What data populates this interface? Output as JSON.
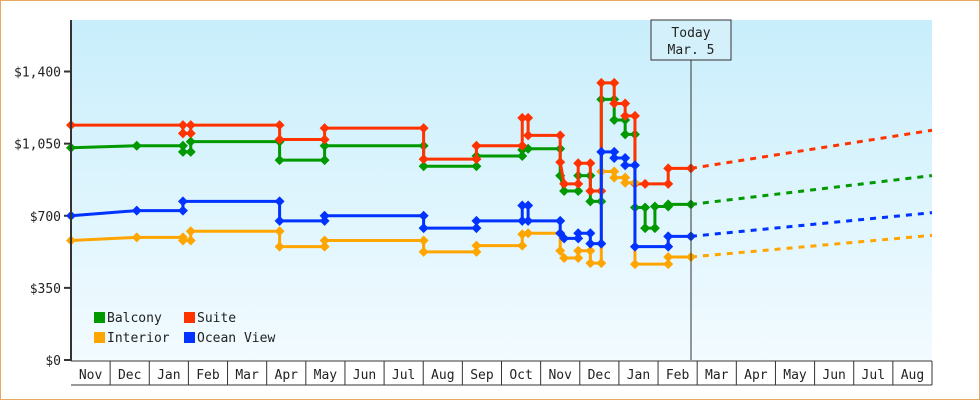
{
  "chart_data": {
    "type": "line",
    "title": "",
    "xlabel": "",
    "ylabel": "",
    "x_unit": "months since start of first Nov",
    "xlim": [
      0,
      22
    ],
    "ylim": [
      0,
      1650
    ],
    "yticks": [
      0,
      350,
      700,
      1050,
      1400
    ],
    "ytick_labels": [
      "$0",
      "$350",
      "$700",
      "$1,050",
      "$1,400"
    ],
    "month_labels": [
      "Nov",
      "Dec",
      "Jan",
      "Feb",
      "Mar",
      "Apr",
      "May",
      "Jun",
      "Jul",
      "Aug",
      "Sep",
      "Oct",
      "Nov",
      "Dec",
      "Jan",
      "Feb",
      "Mar",
      "Apr",
      "May",
      "Jun",
      "Jul",
      "Aug"
    ],
    "today": {
      "label": "Today",
      "date": "Mar. 5",
      "x": 15.84
    },
    "legend_position": "bottom-left",
    "series": [
      {
        "name": "Balcony",
        "color": "#009900",
        "points": [
          [
            0,
            1030
          ],
          [
            1.68,
            1040
          ],
          [
            2.86,
            1040
          ],
          [
            2.86,
            1010
          ],
          [
            3.06,
            1010
          ],
          [
            3.06,
            1060
          ],
          [
            5.33,
            1060
          ],
          [
            5.33,
            970
          ],
          [
            6.48,
            970
          ],
          [
            6.48,
            1040
          ],
          [
            9.01,
            1040
          ],
          [
            9.01,
            940
          ],
          [
            10.36,
            940
          ],
          [
            10.36,
            990
          ],
          [
            11.53,
            990
          ],
          [
            11.53,
            1020
          ],
          [
            11.68,
            1025
          ],
          [
            12.5,
            1025
          ],
          [
            12.5,
            895
          ],
          [
            12.6,
            820
          ],
          [
            12.96,
            820
          ],
          [
            12.96,
            895
          ],
          [
            13.27,
            895
          ],
          [
            13.27,
            770
          ],
          [
            13.55,
            770
          ],
          [
            13.55,
            1265
          ],
          [
            13.88,
            1265
          ],
          [
            13.88,
            1165
          ],
          [
            14.16,
            1165
          ],
          [
            14.16,
            1095
          ],
          [
            14.41,
            1095
          ],
          [
            14.41,
            740
          ],
          [
            14.67,
            740
          ],
          [
            14.67,
            640
          ],
          [
            14.92,
            640
          ],
          [
            14.92,
            745
          ],
          [
            15.26,
            745
          ],
          [
            15.26,
            755
          ],
          [
            15.84,
            755
          ]
        ],
        "forecast": [
          [
            15.84,
            755
          ],
          [
            22,
            895
          ]
        ]
      },
      {
        "name": "Suite",
        "color": "#ff3300",
        "points": [
          [
            0,
            1140
          ],
          [
            2.86,
            1140
          ],
          [
            2.86,
            1100
          ],
          [
            3.06,
            1100
          ],
          [
            3.06,
            1140
          ],
          [
            5.33,
            1140
          ],
          [
            5.33,
            1070
          ],
          [
            6.48,
            1070
          ],
          [
            6.48,
            1125
          ],
          [
            9.01,
            1125
          ],
          [
            9.01,
            975
          ],
          [
            10.36,
            975
          ],
          [
            10.36,
            1040
          ],
          [
            11.53,
            1040
          ],
          [
            11.53,
            1175
          ],
          [
            11.68,
            1175
          ],
          [
            11.68,
            1090
          ],
          [
            12.5,
            1090
          ],
          [
            12.5,
            960
          ],
          [
            12.6,
            855
          ],
          [
            12.96,
            855
          ],
          [
            12.96,
            955
          ],
          [
            13.27,
            955
          ],
          [
            13.27,
            820
          ],
          [
            13.55,
            820
          ],
          [
            13.55,
            1345
          ],
          [
            13.88,
            1345
          ],
          [
            13.88,
            1245
          ],
          [
            14.16,
            1245
          ],
          [
            14.16,
            1185
          ],
          [
            14.41,
            1185
          ],
          [
            14.41,
            855
          ],
          [
            14.67,
            855
          ],
          [
            15.26,
            855
          ],
          [
            15.26,
            930
          ],
          [
            15.84,
            930
          ]
        ],
        "forecast": [
          [
            15.84,
            930
          ],
          [
            22,
            1115
          ]
        ]
      },
      {
        "name": "Interior",
        "color": "#ffa500",
        "points": [
          [
            0,
            580
          ],
          [
            1.68,
            595
          ],
          [
            2.86,
            595
          ],
          [
            2.86,
            580
          ],
          [
            3.06,
            580
          ],
          [
            3.06,
            625
          ],
          [
            5.33,
            625
          ],
          [
            5.33,
            550
          ],
          [
            6.48,
            550
          ],
          [
            6.48,
            580
          ],
          [
            9.01,
            580
          ],
          [
            9.01,
            525
          ],
          [
            10.36,
            525
          ],
          [
            10.36,
            555
          ],
          [
            11.53,
            555
          ],
          [
            11.53,
            610
          ],
          [
            11.68,
            615
          ],
          [
            12.5,
            615
          ],
          [
            12.5,
            530
          ],
          [
            12.6,
            495
          ],
          [
            12.96,
            495
          ],
          [
            12.96,
            530
          ],
          [
            13.27,
            530
          ],
          [
            13.27,
            470
          ],
          [
            13.55,
            470
          ],
          [
            13.55,
            915
          ],
          [
            13.88,
            915
          ],
          [
            13.88,
            885
          ],
          [
            14.16,
            885
          ],
          [
            14.16,
            860
          ],
          [
            14.41,
            860
          ],
          [
            14.41,
            465
          ],
          [
            15.26,
            465
          ],
          [
            15.26,
            500
          ],
          [
            15.84,
            500
          ]
        ],
        "forecast": [
          [
            15.84,
            500
          ],
          [
            22,
            605
          ]
        ]
      },
      {
        "name": "Ocean View",
        "color": "#0033ff",
        "points": [
          [
            0,
            700
          ],
          [
            1.68,
            725
          ],
          [
            2.86,
            725
          ],
          [
            2.86,
            770
          ],
          [
            5.33,
            770
          ],
          [
            5.33,
            675
          ],
          [
            6.48,
            675
          ],
          [
            6.48,
            700
          ],
          [
            9.01,
            700
          ],
          [
            9.01,
            640
          ],
          [
            10.36,
            640
          ],
          [
            10.36,
            675
          ],
          [
            11.53,
            675
          ],
          [
            11.53,
            750
          ],
          [
            11.68,
            750
          ],
          [
            11.68,
            675
          ],
          [
            12.5,
            675
          ],
          [
            12.5,
            615
          ],
          [
            12.6,
            590
          ],
          [
            12.96,
            590
          ],
          [
            12.96,
            615
          ],
          [
            13.27,
            615
          ],
          [
            13.27,
            565
          ],
          [
            13.55,
            565
          ],
          [
            13.55,
            1010
          ],
          [
            13.88,
            1010
          ],
          [
            13.88,
            980
          ],
          [
            14.16,
            980
          ],
          [
            14.16,
            945
          ],
          [
            14.41,
            945
          ],
          [
            14.41,
            550
          ],
          [
            15.26,
            550
          ],
          [
            15.26,
            600
          ],
          [
            15.84,
            600
          ]
        ],
        "forecast": [
          [
            15.84,
            600
          ],
          [
            22,
            715
          ]
        ]
      }
    ]
  }
}
